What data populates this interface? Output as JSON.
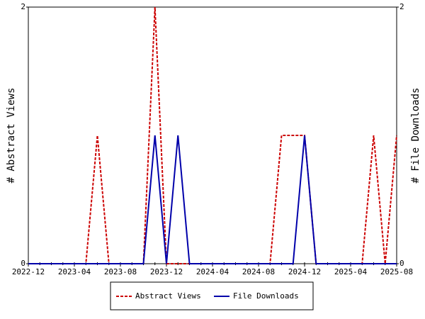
{
  "chart_data": {
    "type": "line",
    "categories": [
      "2022-12",
      null,
      null,
      null,
      "2023-04",
      null,
      null,
      null,
      "2023-08",
      null,
      null,
      null,
      "2023-12",
      null,
      null,
      null,
      "2024-04",
      null,
      null,
      null,
      "2024-08",
      null,
      null,
      null,
      "2024-12",
      null,
      null,
      null,
      "2025-04",
      null,
      null,
      null,
      "2025-08"
    ],
    "series": [
      {
        "name": "Abstract Views",
        "color": "#cc0000",
        "dash": true,
        "values": [
          0,
          0,
          0,
          0,
          0,
          0,
          1,
          0,
          0,
          0,
          0,
          2,
          0,
          0,
          0,
          0,
          0,
          0,
          0,
          0,
          0,
          0,
          1,
          1,
          1,
          0,
          0,
          0,
          0,
          0,
          1,
          0,
          1
        ]
      },
      {
        "name": "File Downloads",
        "color": "#0000aa",
        "axis": "y2",
        "values": [
          0,
          0,
          0,
          0,
          0,
          0,
          0,
          0,
          0,
          0,
          0,
          1,
          0,
          1,
          0,
          0,
          0,
          0,
          0,
          0,
          0,
          0,
          0,
          0,
          1,
          0,
          0,
          0,
          0,
          0,
          0,
          0,
          0
        ]
      }
    ],
    "ylabel": "# Abstract Views",
    "y2label": "# File Downloads",
    "ylim": [
      0,
      2
    ],
    "yticks": [
      0,
      2
    ],
    "y2lim": [
      0,
      2
    ],
    "y2ticks": [
      0,
      2
    ]
  }
}
